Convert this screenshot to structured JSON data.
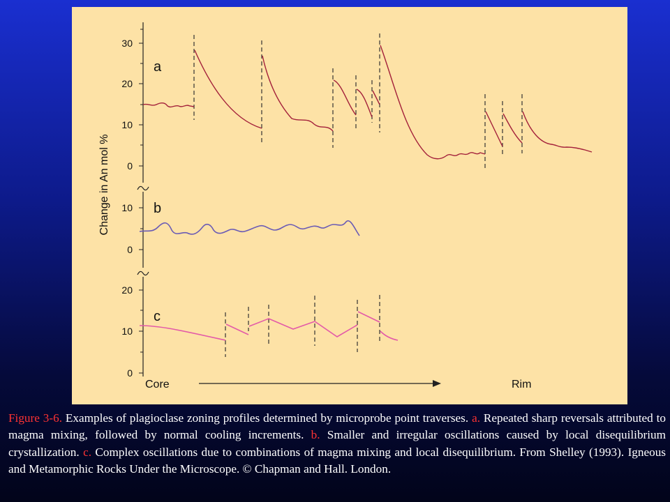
{
  "figure": {
    "y_axis_label": "Change in An mol %",
    "panels": [
      {
        "letter": "a",
        "ticks": [
          30,
          20,
          10,
          0
        ]
      },
      {
        "letter": "b",
        "ticks": [
          10,
          0
        ]
      },
      {
        "letter": "c",
        "ticks": [
          20,
          10,
          0
        ]
      }
    ],
    "x_start": "Core",
    "x_end": "Rim"
  },
  "caption": {
    "parts": [
      "Figure 3-6.",
      " Examples of plagioclase zoning profiles determined by microprobe point traverses. ",
      "a.",
      " Repeated sharp reversals attributed to magma mixing, followed by normal cooling increments. ",
      "b.",
      " Smaller and irregular oscillations caused by local disequilibrium crystallization. ",
      "c.",
      " Complex oscillations due to combinations of magma mixing and local disequilibrium. From Shelley (1993). Igneous and Metamorphic Rocks Under the Microscope. © Chapman and Hall. London."
    ]
  }
}
